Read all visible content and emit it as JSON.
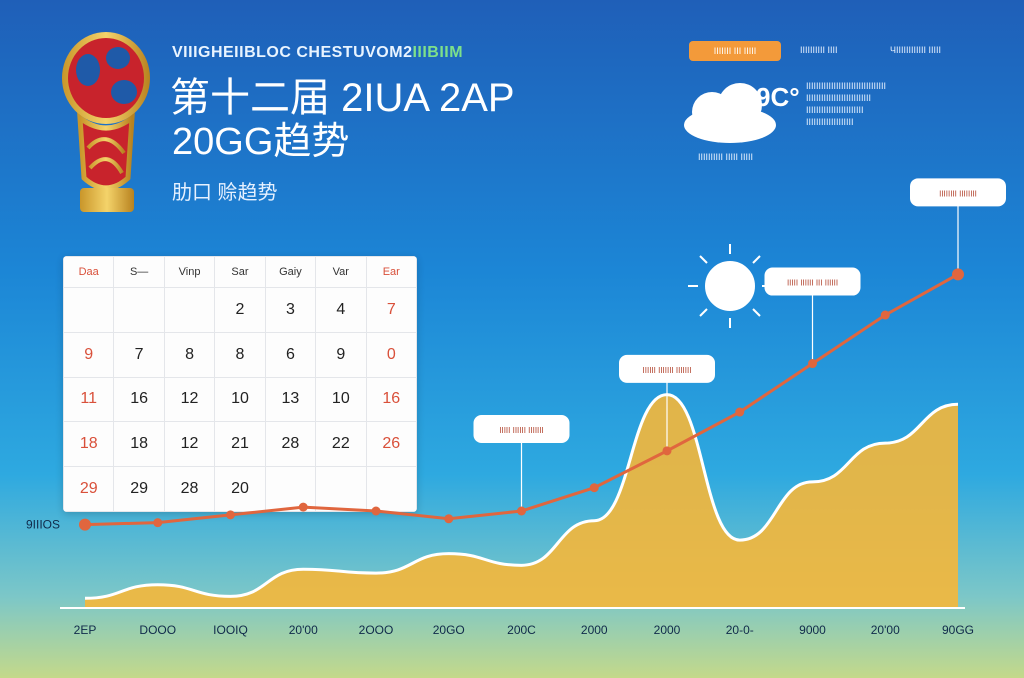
{
  "header": {
    "subtitle_en_a": "VIIIGHEIIBLOC CHESTUVOM2",
    "subtitle_en_b": "IIIBIIM",
    "title_line1": "第十二届 2IUA 2AP",
    "title_line2": "20GG趋势",
    "title_line3": "肋口 赊趋势"
  },
  "legend": {
    "pill_label": "IIIIIII III IIIII",
    "item2": "IIIIIIIIII IIII",
    "item3": "ЧIIIIIIIIIIII IIIII"
  },
  "weather": {
    "temperature": "9C°",
    "caption": "IIIIIIIIII IIIII IIIII",
    "info_lines": [
      "IIIIIIIIIIIIIIIIIIIIIIIIIIIIIIII",
      "IIIIIIIIIIIIIIIIIIIIIIIIII",
      "IIIIIIIIIIIIIIIIIIIIIII",
      "IIIIIIIIIIIIIIIIIII"
    ]
  },
  "calendar": {
    "headers": [
      "Daa",
      "S—",
      "Vinp",
      "Sar",
      "Gaiy",
      "Var",
      "Ear"
    ],
    "rows": [
      [
        "",
        "",
        "",
        "2",
        "3",
        "4",
        "7"
      ],
      [
        "9",
        "7",
        "8",
        "8",
        "6",
        "9",
        "0"
      ],
      [
        "11",
        "16",
        "12",
        "10",
        "13",
        "10",
        "16"
      ],
      [
        "18",
        "18",
        "12",
        "21",
        "28",
        "22",
        "26"
      ],
      [
        "29",
        "29",
        "28",
        "20",
        "",
        "",
        ""
      ]
    ],
    "red_columns": [
      0,
      6
    ]
  },
  "chart_data": {
    "type": "line",
    "title": "",
    "xlabel": "",
    "ylabel": "",
    "y_start_label": "9IIIOS",
    "x": [
      "2EP",
      "DOOO",
      "IOOIQ",
      "20'00",
      "2OOO",
      "20GO",
      "200C",
      "2000",
      "2000",
      "20-0-",
      "9000",
      "20'00",
      "90GG"
    ],
    "series": [
      {
        "type": "line",
        "color": "#e0663e",
        "values": [
          43,
          44,
          48,
          52,
          50,
          46,
          50,
          62,
          81,
          101,
          126,
          151,
          172
        ]
      },
      {
        "type": "area",
        "color": "#f5b73a",
        "values": [
          5,
          12,
          6,
          20,
          18,
          28,
          22,
          45,
          110,
          35,
          65,
          85,
          105
        ]
      }
    ],
    "annotations": [
      {
        "label": "IIIII IIIIII IIIIIII",
        "point": 6
      },
      {
        "label": "IIIIII IIIIIII IIIIIII",
        "point": 8
      },
      {
        "label": "IIIII IIIIII III IIIIII",
        "point": 10
      },
      {
        "label": "IIIIIIII IIIIIIII",
        "point": 12
      }
    ]
  }
}
